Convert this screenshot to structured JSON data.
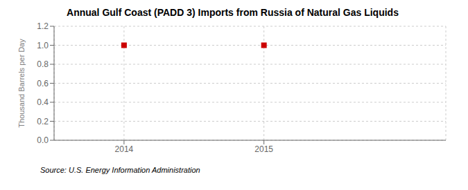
{
  "chart_data": {
    "type": "scatter",
    "title": "Annual Gulf Coast (PADD 3) Imports from Russia of Natural Gas Liquids",
    "ylabel": "Thousand Barrels per Day",
    "annotations": [
      "Source: U.S. Energy Information Administration"
    ],
    "x": [
      2014,
      2015
    ],
    "values": [
      1.0,
      1.0
    ],
    "color": "#cc0000",
    "marker": "square",
    "xlim": [
      2013.5,
      2016.3
    ],
    "xticks": [
      2014,
      2015
    ],
    "ylim": [
      0.0,
      1.2
    ],
    "yticks": [
      {
        "value": 0,
        "label": "0.0"
      },
      0.2,
      0.4,
      0.6,
      0.8,
      {
        "value": 1,
        "label": "1.0"
      },
      1.2
    ],
    "grid": true
  }
}
